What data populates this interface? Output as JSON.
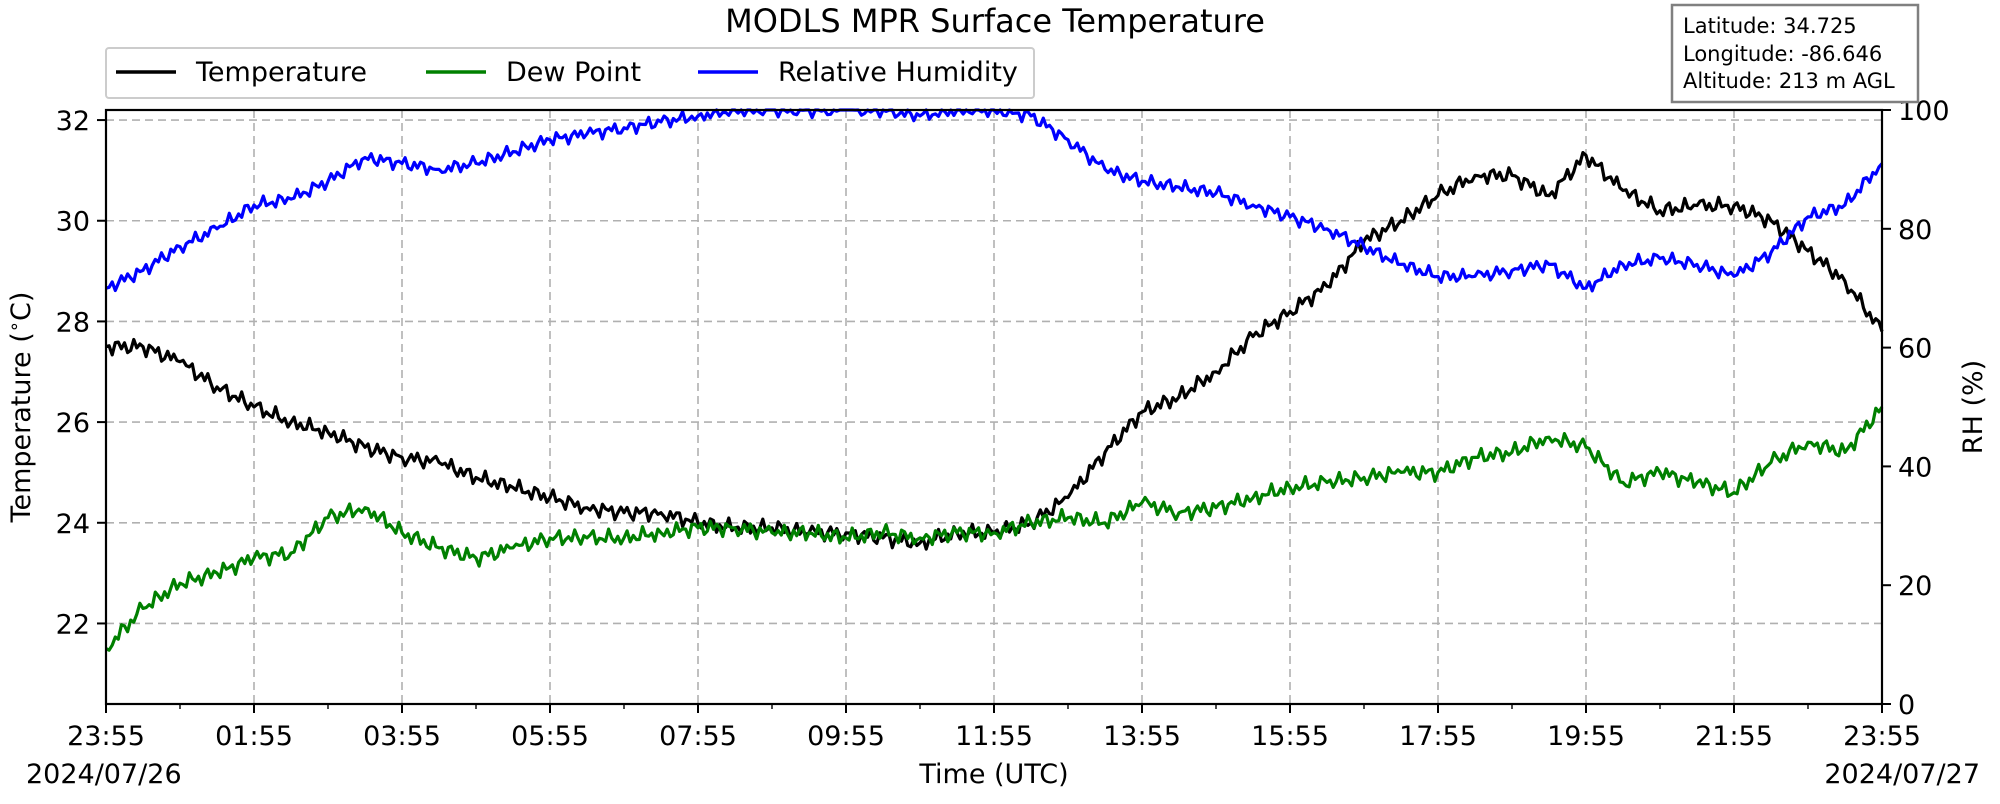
{
  "chart_data": {
    "type": "line",
    "title": "MODLS MPR Surface Temperature",
    "xlabel": "Time (UTC)",
    "ylabel": "Temperature ($^\\circ$C)",
    "ylabel_parts": {
      "before": "Temperature (",
      "deg": "∘",
      "after": "C)"
    },
    "y2label": "RH (%)",
    "ylim": [
      20.4,
      32.2
    ],
    "y2lim": [
      0,
      100
    ],
    "xlim": [
      "2024-07-26T23:55",
      "2024-07-27T23:55"
    ],
    "x_ticks": [
      "23:55",
      "01:55",
      "03:55",
      "05:55",
      "07:55",
      "09:55",
      "11:55",
      "13:55",
      "15:55",
      "17:55",
      "19:55",
      "21:55",
      "23:55"
    ],
    "y_ticks": [
      "22",
      "24",
      "26",
      "28",
      "30",
      "32"
    ],
    "y2_ticks": [
      "0",
      "20",
      "40",
      "60",
      "80",
      "100"
    ],
    "date_start": "2024/07/26",
    "date_end": "2024/07/27",
    "grid": true,
    "legend_position": "top-left",
    "info_box": {
      "latitude": "Latitude: 34.725",
      "longitude": "Longitude: -86.646",
      "altitude": "Altitude: 213 m AGL"
    },
    "series": [
      {
        "name": "Temperature",
        "color": "#000000",
        "axis": "left",
        "points": [
          [
            "2024-07-26T23:55",
            27.5
          ],
          [
            "2024-07-27T00:25",
            27.5
          ],
          [
            "2024-07-27T00:55",
            27.2
          ],
          [
            "2024-07-27T01:25",
            26.7
          ],
          [
            "2024-07-27T01:55",
            26.3
          ],
          [
            "2024-07-27T02:25",
            26.0
          ],
          [
            "2024-07-27T02:55",
            25.8
          ],
          [
            "2024-07-27T03:25",
            25.5
          ],
          [
            "2024-07-27T03:55",
            25.3
          ],
          [
            "2024-07-27T04:25",
            25.2
          ],
          [
            "2024-07-27T04:55",
            24.9
          ],
          [
            "2024-07-27T05:25",
            24.7
          ],
          [
            "2024-07-27T05:55",
            24.5
          ],
          [
            "2024-07-27T06:25",
            24.3
          ],
          [
            "2024-07-27T06:55",
            24.2
          ],
          [
            "2024-07-27T07:25",
            24.2
          ],
          [
            "2024-07-27T07:55",
            24.0
          ],
          [
            "2024-07-27T08:25",
            23.9
          ],
          [
            "2024-07-27T08:55",
            23.9
          ],
          [
            "2024-07-27T09:25",
            23.8
          ],
          [
            "2024-07-27T09:55",
            23.8
          ],
          [
            "2024-07-27T10:25",
            23.7
          ],
          [
            "2024-07-27T10:55",
            23.6
          ],
          [
            "2024-07-27T11:25",
            23.8
          ],
          [
            "2024-07-27T11:55",
            23.8
          ],
          [
            "2024-07-27T12:25",
            24.0
          ],
          [
            "2024-07-27T12:55",
            24.5
          ],
          [
            "2024-07-27T13:25",
            25.4
          ],
          [
            "2024-07-27T13:55",
            26.2
          ],
          [
            "2024-07-27T14:25",
            26.5
          ],
          [
            "2024-07-27T14:55",
            27.0
          ],
          [
            "2024-07-27T15:25",
            27.7
          ],
          [
            "2024-07-27T15:55",
            28.2
          ],
          [
            "2024-07-27T16:25",
            28.7
          ],
          [
            "2024-07-27T16:55",
            29.6
          ],
          [
            "2024-07-27T17:25",
            30.0
          ],
          [
            "2024-07-27T17:55",
            30.5
          ],
          [
            "2024-07-27T18:25",
            30.9
          ],
          [
            "2024-07-27T18:55",
            30.9
          ],
          [
            "2024-07-27T19:25",
            30.5
          ],
          [
            "2024-07-27T19:55",
            31.3
          ],
          [
            "2024-07-27T20:25",
            30.6
          ],
          [
            "2024-07-27T20:55",
            30.2
          ],
          [
            "2024-07-27T21:25",
            30.3
          ],
          [
            "2024-07-27T21:55",
            30.3
          ],
          [
            "2024-07-27T22:25",
            30.0
          ],
          [
            "2024-07-27T22:55",
            29.4
          ],
          [
            "2024-07-27T23:25",
            28.8
          ],
          [
            "2024-07-27T23:55",
            27.8
          ]
        ]
      },
      {
        "name": "Dew Point",
        "color": "#008000",
        "axis": "left",
        "points": [
          [
            "2024-07-26T23:55",
            21.5
          ],
          [
            "2024-07-27T00:25",
            22.3
          ],
          [
            "2024-07-27T00:55",
            22.8
          ],
          [
            "2024-07-27T01:25",
            23.0
          ],
          [
            "2024-07-27T01:55",
            23.3
          ],
          [
            "2024-07-27T02:25",
            23.4
          ],
          [
            "2024-07-27T02:55",
            24.1
          ],
          [
            "2024-07-27T03:25",
            24.3
          ],
          [
            "2024-07-27T03:55",
            23.8
          ],
          [
            "2024-07-27T04:25",
            23.5
          ],
          [
            "2024-07-27T04:55",
            23.3
          ],
          [
            "2024-07-27T05:25",
            23.5
          ],
          [
            "2024-07-27T05:55",
            23.7
          ],
          [
            "2024-07-27T06:25",
            23.7
          ],
          [
            "2024-07-27T06:55",
            23.7
          ],
          [
            "2024-07-27T07:25",
            23.8
          ],
          [
            "2024-07-27T07:55",
            23.9
          ],
          [
            "2024-07-27T08:25",
            23.9
          ],
          [
            "2024-07-27T08:55",
            23.8
          ],
          [
            "2024-07-27T09:25",
            23.8
          ],
          [
            "2024-07-27T09:55",
            23.7
          ],
          [
            "2024-07-27T10:25",
            23.8
          ],
          [
            "2024-07-27T10:55",
            23.7
          ],
          [
            "2024-07-27T11:25",
            23.8
          ],
          [
            "2024-07-27T11:55",
            23.8
          ],
          [
            "2024-07-27T12:25",
            24.0
          ],
          [
            "2024-07-27T12:55",
            24.1
          ],
          [
            "2024-07-27T13:25",
            24.0
          ],
          [
            "2024-07-27T13:55",
            24.4
          ],
          [
            "2024-07-27T14:25",
            24.2
          ],
          [
            "2024-07-27T14:55",
            24.3
          ],
          [
            "2024-07-27T15:25",
            24.5
          ],
          [
            "2024-07-27T15:55",
            24.7
          ],
          [
            "2024-07-27T16:25",
            24.8
          ],
          [
            "2024-07-27T16:55",
            24.9
          ],
          [
            "2024-07-27T17:25",
            25.0
          ],
          [
            "2024-07-27T17:55",
            25.0
          ],
          [
            "2024-07-27T18:25",
            25.3
          ],
          [
            "2024-07-27T18:55",
            25.4
          ],
          [
            "2024-07-27T19:25",
            25.7
          ],
          [
            "2024-07-27T19:55",
            25.5
          ],
          [
            "2024-07-27T20:25",
            24.8
          ],
          [
            "2024-07-27T20:55",
            25.0
          ],
          [
            "2024-07-27T21:25",
            24.8
          ],
          [
            "2024-07-27T21:55",
            24.6
          ],
          [
            "2024-07-27T22:25",
            25.2
          ],
          [
            "2024-07-27T22:55",
            25.6
          ],
          [
            "2024-07-27T23:25",
            25.4
          ],
          [
            "2024-07-27T23:55",
            26.3
          ]
        ]
      },
      {
        "name": "Relative Humidity",
        "color": "#0000ff",
        "axis": "right",
        "points": [
          [
            "2024-07-26T23:55",
            70
          ],
          [
            "2024-07-27T00:25",
            73
          ],
          [
            "2024-07-27T00:55",
            77
          ],
          [
            "2024-07-27T01:25",
            80
          ],
          [
            "2024-07-27T01:55",
            84
          ],
          [
            "2024-07-27T02:25",
            85
          ],
          [
            "2024-07-27T02:55",
            88
          ],
          [
            "2024-07-27T03:25",
            92
          ],
          [
            "2024-07-27T03:55",
            91
          ],
          [
            "2024-07-27T04:25",
            90
          ],
          [
            "2024-07-27T04:55",
            91
          ],
          [
            "2024-07-27T05:25",
            93
          ],
          [
            "2024-07-27T05:55",
            95
          ],
          [
            "2024-07-27T06:25",
            96
          ],
          [
            "2024-07-27T06:55",
            97
          ],
          [
            "2024-07-27T07:25",
            98
          ],
          [
            "2024-07-27T07:55",
            99
          ],
          [
            "2024-07-27T08:25",
            100
          ],
          [
            "2024-07-27T08:55",
            100
          ],
          [
            "2024-07-27T09:25",
            100
          ],
          [
            "2024-07-27T09:55",
            100
          ],
          [
            "2024-07-27T10:25",
            100
          ],
          [
            "2024-07-27T10:55",
            99
          ],
          [
            "2024-07-27T11:25",
            100
          ],
          [
            "2024-07-27T11:55",
            100
          ],
          [
            "2024-07-27T12:25",
            99
          ],
          [
            "2024-07-27T12:55",
            95
          ],
          [
            "2024-07-27T13:25",
            90
          ],
          [
            "2024-07-27T13:55",
            88
          ],
          [
            "2024-07-27T14:25",
            87
          ],
          [
            "2024-07-27T14:55",
            86
          ],
          [
            "2024-07-27T15:25",
            84
          ],
          [
            "2024-07-27T15:55",
            82
          ],
          [
            "2024-07-27T16:25",
            80
          ],
          [
            "2024-07-27T16:55",
            77
          ],
          [
            "2024-07-27T17:25",
            74
          ],
          [
            "2024-07-27T17:55",
            72
          ],
          [
            "2024-07-27T18:25",
            72
          ],
          [
            "2024-07-27T18:55",
            73
          ],
          [
            "2024-07-27T19:25",
            74
          ],
          [
            "2024-07-27T19:55",
            70
          ],
          [
            "2024-07-27T20:25",
            74
          ],
          [
            "2024-07-27T20:55",
            75
          ],
          [
            "2024-07-27T21:25",
            74
          ],
          [
            "2024-07-27T21:55",
            72
          ],
          [
            "2024-07-27T22:25",
            76
          ],
          [
            "2024-07-27T22:55",
            82
          ],
          [
            "2024-07-27T23:25",
            84
          ],
          [
            "2024-07-27T23:55",
            91
          ]
        ]
      }
    ]
  }
}
